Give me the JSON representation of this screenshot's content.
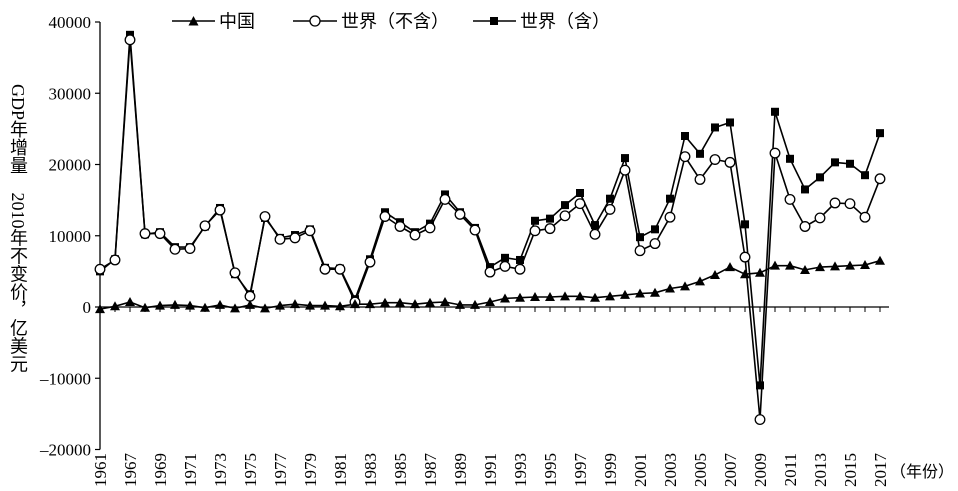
{
  "colors": {
    "ink": "#000000",
    "background": "#ffffff"
  },
  "chart_data": {
    "type": "line",
    "title": "",
    "xlabel": "（年份）",
    "ylabel": "GDP年增量 2010年不变价，亿美元",
    "ylim": [
      -20000,
      40000
    ],
    "yticks": [
      40000,
      30000,
      20000,
      10000,
      0,
      -10000,
      -20000
    ],
    "ytick_labels": [
      "40000",
      "30000",
      "20000",
      "10000",
      "0",
      "–10000",
      "–20000"
    ],
    "x": [
      1965,
      1966,
      1967,
      1968,
      1969,
      1970,
      1971,
      1972,
      1973,
      1974,
      1975,
      1976,
      1977,
      1978,
      1979,
      1980,
      1981,
      1982,
      1983,
      1984,
      1985,
      1986,
      1987,
      1988,
      1989,
      1990,
      1991,
      1992,
      1993,
      1994,
      1995,
      1996,
      1997,
      1998,
      1999,
      2000,
      2001,
      2002,
      2003,
      2004,
      2005,
      2006,
      2007,
      2008,
      2009,
      2010,
      2011,
      2012,
      2013,
      2014,
      2015,
      2016,
      2017
    ],
    "xtick_labels": [
      "1961",
      "1967",
      "1969",
      "1971",
      "1973",
      "1975",
      "1977",
      "1979",
      "1981",
      "1983",
      "1985",
      "1987",
      "1989",
      "1991",
      "1993",
      "1995",
      "1997",
      "1999",
      "2001",
      "2003",
      "2005",
      "2007",
      "2009",
      "2011",
      "2013",
      "2015",
      "2017"
    ],
    "legend": "top",
    "grid": false,
    "series": [
      {
        "name": "中国",
        "values": [
          -300,
          100,
          700,
          -100,
          200,
          300,
          200,
          -100,
          300,
          -200,
          300,
          -200,
          200,
          400,
          200,
          200,
          100,
          400,
          400,
          600,
          600,
          400,
          600,
          700,
          300,
          300,
          700,
          1200,
          1300,
          1400,
          1400,
          1500,
          1500,
          1300,
          1500,
          1700,
          1900,
          2000,
          2600,
          2900,
          3600,
          4500,
          5600,
          4600,
          4800,
          5800,
          5800,
          5200,
          5600,
          5700,
          5800,
          5900,
          6500
        ]
      },
      {
        "name": "世界（不含）",
        "values": [
          5300,
          6600,
          37500,
          10300,
          10300,
          8100,
          8200,
          11400,
          13600,
          4800,
          1500,
          12700,
          9500,
          9700,
          10700,
          5300,
          5300,
          700,
          6300,
          12700,
          11300,
          10100,
          11100,
          15100,
          13000,
          10800,
          4900,
          5700,
          5300,
          10700,
          11000,
          12800,
          14500,
          10200,
          13700,
          19200,
          7900,
          8900,
          12600,
          21100,
          17900,
          20700,
          20300,
          7000,
          -15800,
          21600,
          15100,
          11300,
          12500,
          14600,
          14500,
          12600,
          18000
        ]
      },
      {
        "name": "世界（含）",
        "values": [
          5000,
          6700,
          38200,
          10200,
          10500,
          8400,
          8400,
          11300,
          13900,
          4600,
          1800,
          12500,
          9700,
          10100,
          10900,
          5500,
          5400,
          1100,
          6700,
          13300,
          11900,
          10500,
          11700,
          15800,
          13300,
          11100,
          5600,
          6900,
          6600,
          12100,
          12400,
          14300,
          16000,
          11500,
          15200,
          20900,
          9800,
          10900,
          15200,
          24000,
          21500,
          25200,
          25900,
          11600,
          -11000,
          27400,
          20800,
          16500,
          18200,
          20300,
          20100,
          18500,
          24400
        ]
      }
    ]
  }
}
